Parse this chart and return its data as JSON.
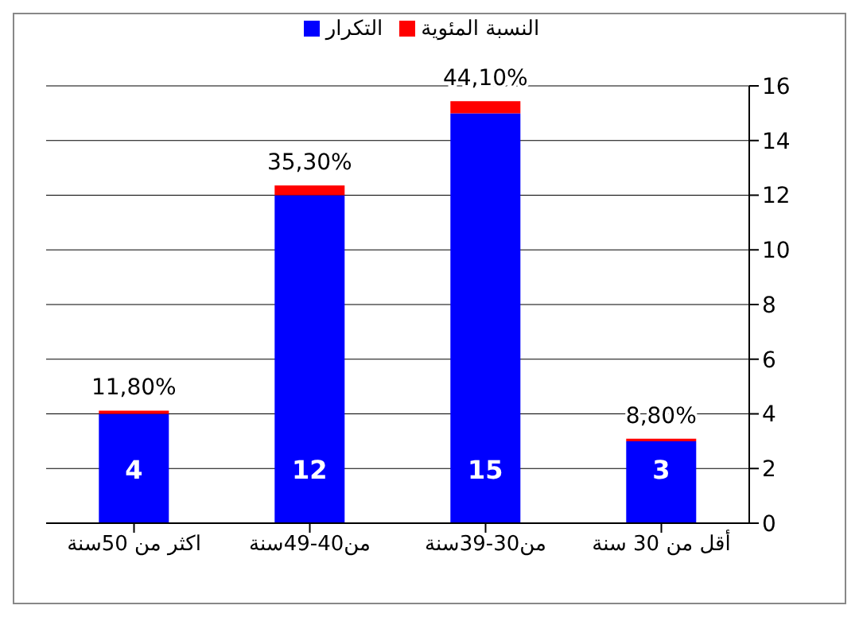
{
  "chart_data": {
    "type": "bar",
    "stacked": true,
    "categories": [
      "اكثر من 50سنة",
      "من40-49سنة",
      "من30-39سنة",
      "أقل من 30 سنة"
    ],
    "series": [
      {
        "name": "التكرار",
        "color": "#0000ff",
        "values": [
          4,
          12,
          15,
          3
        ],
        "value_labels": [
          "4",
          "12",
          "15",
          "3"
        ]
      },
      {
        "name": "النسبة المئوية",
        "color": "#ff0000",
        "values": [
          0.118,
          0.353,
          0.441,
          0.088
        ],
        "value_labels": [
          "11,80%",
          "35,30%",
          "44,10%",
          "8,80%"
        ]
      }
    ],
    "ylim": [
      0,
      16
    ],
    "yticks": [
      0,
      2,
      4,
      6,
      8,
      10,
      12,
      14,
      16
    ],
    "grid": "y",
    "legend": "top"
  }
}
